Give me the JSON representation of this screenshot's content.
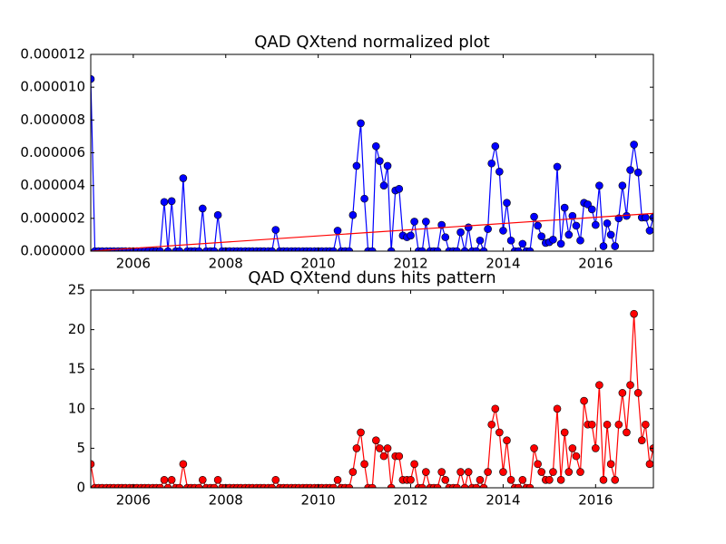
{
  "chart_data": [
    {
      "type": "line",
      "title": "QAD QXtend normalized plot",
      "color": "#0000ff",
      "x": [
        2005.08,
        2005.17,
        2005.25,
        2005.33,
        2005.42,
        2005.5,
        2005.58,
        2005.67,
        2005.75,
        2005.83,
        2005.92,
        2006,
        2006.08,
        2006.17,
        2006.25,
        2006.33,
        2006.42,
        2006.5,
        2006.58,
        2006.67,
        2006.75,
        2006.83,
        2006.92,
        2007,
        2007.08,
        2007.17,
        2007.25,
        2007.33,
        2007.42,
        2007.5,
        2007.58,
        2007.67,
        2007.75,
        2007.83,
        2007.92,
        2008,
        2008.08,
        2008.17,
        2008.25,
        2008.33,
        2008.42,
        2008.5,
        2008.58,
        2008.67,
        2008.75,
        2008.83,
        2008.92,
        2009,
        2009.08,
        2009.17,
        2009.25,
        2009.33,
        2009.42,
        2009.5,
        2009.58,
        2009.67,
        2009.75,
        2009.83,
        2009.92,
        2010,
        2010.08,
        2010.17,
        2010.25,
        2010.33,
        2010.42,
        2010.5,
        2010.58,
        2010.67,
        2010.75,
        2010.83,
        2010.92,
        2011,
        2011.08,
        2011.17,
        2011.25,
        2011.33,
        2011.42,
        2011.5,
        2011.58,
        2011.67,
        2011.75,
        2011.83,
        2011.92,
        2012,
        2012.08,
        2012.17,
        2012.25,
        2012.33,
        2012.42,
        2012.5,
        2012.58,
        2012.67,
        2012.75,
        2012.83,
        2012.92,
        2013,
        2013.08,
        2013.17,
        2013.25,
        2013.33,
        2013.42,
        2013.5,
        2013.58,
        2013.67,
        2013.75,
        2013.83,
        2013.92,
        2014,
        2014.08,
        2014.17,
        2014.25,
        2014.33,
        2014.42,
        2014.5,
        2014.58,
        2014.67,
        2014.75,
        2014.83,
        2014.92,
        2015,
        2015.08,
        2015.17,
        2015.25,
        2015.33,
        2015.42,
        2015.5,
        2015.58,
        2015.67,
        2015.75,
        2015.83,
        2015.92,
        2016,
        2016.08,
        2016.17,
        2016.25,
        2016.33,
        2016.42,
        2016.5,
        2016.58,
        2016.67,
        2016.75,
        2016.83,
        2016.92,
        2017,
        2017.08,
        2017.17,
        2017.25
      ],
      "values": [
        1.05e-05,
        0,
        0,
        0,
        0,
        0,
        0,
        0,
        0,
        0,
        0,
        0,
        0,
        0,
        0,
        0,
        0,
        0,
        0,
        3e-06,
        0,
        3.05e-06,
        0,
        0,
        4.45e-06,
        0,
        0,
        0,
        0,
        2.6e-06,
        0,
        0,
        0,
        2.2e-06,
        0,
        0,
        0,
        0,
        0,
        0,
        0,
        0,
        0,
        0,
        0,
        0,
        0,
        0,
        1.3e-06,
        0,
        0,
        0,
        0,
        0,
        0,
        0,
        0,
        0,
        0,
        0,
        0,
        0,
        0,
        0,
        1.25e-06,
        0,
        0,
        0,
        2.2e-06,
        5.2e-06,
        7.8e-06,
        3.2e-06,
        0,
        0,
        6.4e-06,
        5.5e-06,
        4e-06,
        5.2e-06,
        0,
        3.7e-06,
        3.8e-06,
        9.5e-07,
        8.5e-07,
        9.5e-07,
        1.8e-06,
        0,
        0,
        1.8e-06,
        0,
        0,
        0,
        1.6e-06,
        8.5e-07,
        0,
        0,
        0,
        1.15e-06,
        0,
        1.45e-06,
        0,
        0,
        6.5e-07,
        0,
        1.35e-06,
        5.35e-06,
        6.4e-06,
        4.85e-06,
        1.25e-06,
        2.95e-06,
        6.5e-07,
        0,
        0,
        4.5e-07,
        0,
        0,
        2.1e-06,
        1.55e-06,
        9e-07,
        5e-07,
        5.5e-07,
        7e-07,
        5.15e-06,
        4.5e-07,
        2.65e-06,
        1e-06,
        2.15e-06,
        1.55e-06,
        6.5e-07,
        2.95e-06,
        2.85e-06,
        2.55e-06,
        1.6e-06,
        4e-06,
        3e-07,
        1.7e-06,
        1e-06,
        3e-07,
        2e-06,
        4e-06,
        2.15e-06,
        4.95e-06,
        6.5e-06,
        4.8e-06,
        2.05e-06,
        2.05e-06,
        1.25e-06,
        2.05e-06
      ],
      "trend": {
        "color": "#ff0000",
        "x": [
          2005.08,
          2017.25
        ],
        "values": [
          0,
          2.3e-06
        ]
      },
      "xlim": [
        2005.08,
        2017.25
      ],
      "xticks": [
        2006,
        2008,
        2010,
        2012,
        2014,
        2016
      ],
      "ylim": [
        0,
        1.2e-05
      ],
      "yticks": [
        {
          "value": 0,
          "label": "0.000000"
        },
        {
          "value": 2e-06,
          "label": "0.000002"
        },
        {
          "value": 4e-06,
          "label": "0.000004"
        },
        {
          "value": 6e-06,
          "label": "0.000006"
        },
        {
          "value": 8e-06,
          "label": "0.000008"
        },
        {
          "value": 1e-05,
          "label": "0.000010"
        },
        {
          "value": 1.2e-05,
          "label": "0.000012"
        }
      ]
    },
    {
      "type": "line",
      "title": "QAD QXtend duns hits pattern",
      "color": "#ff0000",
      "x": [
        2005.08,
        2005.17,
        2005.25,
        2005.33,
        2005.42,
        2005.5,
        2005.58,
        2005.67,
        2005.75,
        2005.83,
        2005.92,
        2006,
        2006.08,
        2006.17,
        2006.25,
        2006.33,
        2006.42,
        2006.5,
        2006.58,
        2006.67,
        2006.75,
        2006.83,
        2006.92,
        2007,
        2007.08,
        2007.17,
        2007.25,
        2007.33,
        2007.42,
        2007.5,
        2007.58,
        2007.67,
        2007.75,
        2007.83,
        2007.92,
        2008,
        2008.08,
        2008.17,
        2008.25,
        2008.33,
        2008.42,
        2008.5,
        2008.58,
        2008.67,
        2008.75,
        2008.83,
        2008.92,
        2009,
        2009.08,
        2009.17,
        2009.25,
        2009.33,
        2009.42,
        2009.5,
        2009.58,
        2009.67,
        2009.75,
        2009.83,
        2009.92,
        2010,
        2010.08,
        2010.17,
        2010.25,
        2010.33,
        2010.42,
        2010.5,
        2010.58,
        2010.67,
        2010.75,
        2010.83,
        2010.92,
        2011,
        2011.08,
        2011.17,
        2011.25,
        2011.33,
        2011.42,
        2011.5,
        2011.58,
        2011.67,
        2011.75,
        2011.83,
        2011.92,
        2012,
        2012.08,
        2012.17,
        2012.25,
        2012.33,
        2012.42,
        2012.5,
        2012.58,
        2012.67,
        2012.75,
        2012.83,
        2012.92,
        2013,
        2013.08,
        2013.17,
        2013.25,
        2013.33,
        2013.42,
        2013.5,
        2013.58,
        2013.67,
        2013.75,
        2013.83,
        2013.92,
        2014,
        2014.08,
        2014.17,
        2014.25,
        2014.33,
        2014.42,
        2014.5,
        2014.58,
        2014.67,
        2014.75,
        2014.83,
        2014.92,
        2015,
        2015.08,
        2015.17,
        2015.25,
        2015.33,
        2015.42,
        2015.5,
        2015.58,
        2015.67,
        2015.75,
        2015.83,
        2015.92,
        2016,
        2016.08,
        2016.17,
        2016.25,
        2016.33,
        2016.42,
        2016.5,
        2016.58,
        2016.67,
        2016.75,
        2016.83,
        2016.92,
        2017,
        2017.08,
        2017.17,
        2017.25
      ],
      "values": [
        3,
        0,
        0,
        0,
        0,
        0,
        0,
        0,
        0,
        0,
        0,
        0,
        0,
        0,
        0,
        0,
        0,
        0,
        0,
        1,
        0,
        1,
        0,
        0,
        3,
        0,
        0,
        0,
        0,
        1,
        0,
        0,
        0,
        1,
        0,
        0,
        0,
        0,
        0,
        0,
        0,
        0,
        0,
        0,
        0,
        0,
        0,
        0,
        1,
        0,
        0,
        0,
        0,
        0,
        0,
        0,
        0,
        0,
        0,
        0,
        0,
        0,
        0,
        0,
        1,
        0,
        0,
        0,
        2,
        5,
        7,
        3,
        0,
        0,
        6,
        5,
        4,
        5,
        0,
        4,
        4,
        1,
        1,
        1,
        3,
        0,
        0,
        2,
        0,
        0,
        0,
        2,
        1,
        0,
        0,
        0,
        2,
        0,
        2,
        0,
        0,
        1,
        0,
        2,
        8,
        10,
        7,
        2,
        6,
        1,
        0,
        0,
        1,
        0,
        0,
        5,
        3,
        2,
        1,
        1,
        2,
        10,
        1,
        7,
        2,
        5,
        4,
        2,
        11,
        8,
        8,
        5,
        13,
        1,
        8,
        3,
        1,
        8,
        12,
        7,
        13,
        22,
        12,
        6,
        8,
        3,
        5
      ],
      "xlim": [
        2005.08,
        2017.25
      ],
      "xticks": [
        2006,
        2008,
        2010,
        2012,
        2014,
        2016
      ],
      "ylim": [
        0,
        25
      ],
      "yticks": [
        0,
        5,
        10,
        15,
        20,
        25
      ]
    }
  ]
}
